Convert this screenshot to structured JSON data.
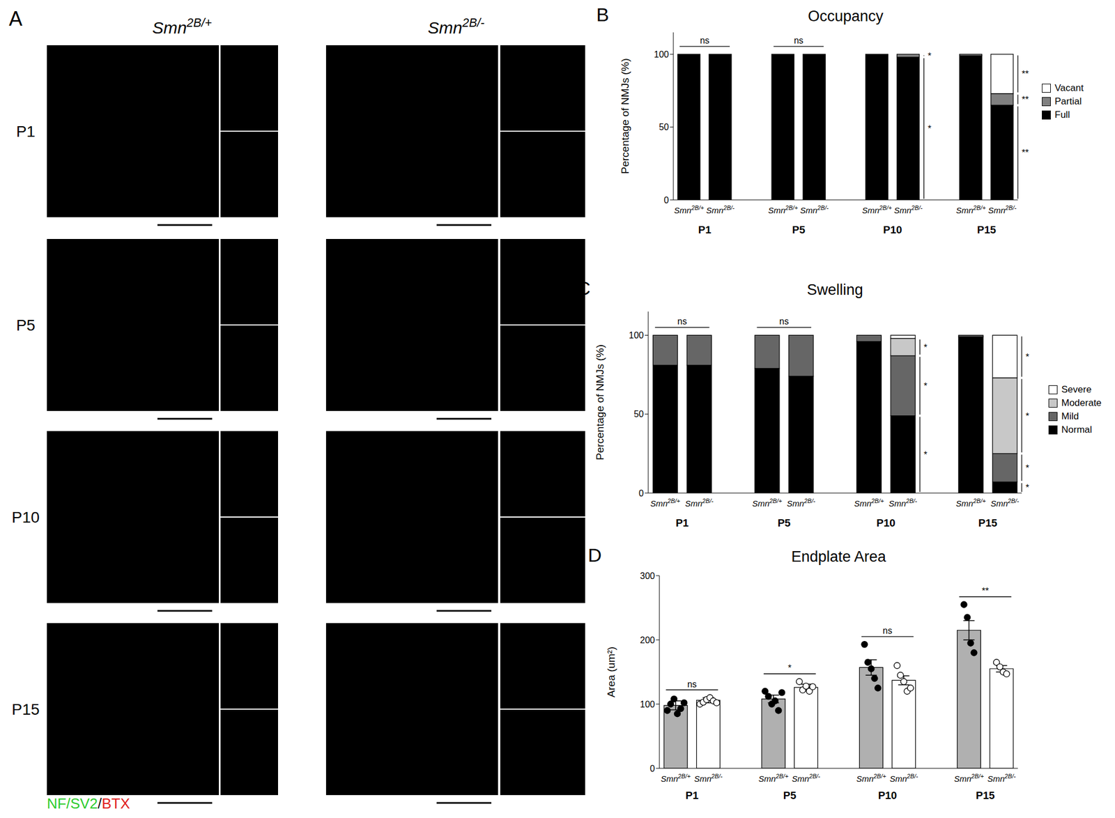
{
  "panel_a": {
    "label": "A",
    "columns": [
      "Smn2B/+",
      "Smn2B/-"
    ],
    "rows": [
      "P1",
      "P5",
      "P10",
      "P15"
    ],
    "stain": [
      {
        "text": "NF/SV2",
        "color": "#2ecc2e"
      },
      {
        "text": "/",
        "color": "#111111"
      },
      {
        "text": "BTX",
        "color": "#e02020"
      }
    ]
  },
  "chart_data": [
    {
      "panel": "B",
      "type": "bar",
      "stacked": true,
      "grid": false,
      "legend": "right",
      "title": "Occupancy",
      "y_label": "Percentage of NMJs (%)",
      "categories": [
        "Smn2B/+",
        "Smn2B/-",
        null,
        "Smn2B/+",
        "Smn2B/-",
        null,
        "Smn2B/+",
        "Smn2B/-",
        null,
        "Smn2B/+",
        "Smn2B/-"
      ],
      "groups": [
        {
          "label": "P1",
          "members": [
            0,
            1
          ]
        },
        {
          "label": "P5",
          "members": [
            3,
            4
          ]
        },
        {
          "label": "P10",
          "members": [
            6,
            7
          ]
        },
        {
          "label": "P15",
          "members": [
            9,
            10
          ]
        }
      ],
      "ylim": [
        0,
        115
      ],
      "yticks": [
        0,
        50,
        100
      ],
      "series": [
        {
          "name": "Full",
          "color": "#000000",
          "values": [
            100,
            100,
            null,
            100,
            100,
            null,
            100,
            98,
            null,
            99,
            65
          ]
        },
        {
          "name": "Partial",
          "color": "#808080",
          "values": [
            0,
            0,
            null,
            0,
            0,
            null,
            0,
            2,
            null,
            1,
            8
          ]
        },
        {
          "name": "Vacant",
          "color": "#ffffff",
          "values": [
            0,
            0,
            null,
            0,
            0,
            null,
            0,
            0,
            null,
            0,
            27
          ]
        }
      ],
      "annotations": [
        {
          "between": [
            0,
            1
          ],
          "text": "ns"
        },
        {
          "between": [
            3,
            4
          ],
          "text": "ns"
        },
        {
          "at": 7,
          "series": "Partial",
          "text": "*"
        },
        {
          "at": 7,
          "series": "Full",
          "text": "*"
        },
        {
          "at": 10,
          "series": "Vacant",
          "text": "**"
        },
        {
          "at": 10,
          "series": "Partial",
          "text": "**"
        },
        {
          "at": 10,
          "series": "Full",
          "text": "**"
        }
      ]
    },
    {
      "panel": "C",
      "type": "bar",
      "stacked": true,
      "grid": false,
      "legend": "right",
      "title": "Swelling",
      "y_label": "Percentage of NMJs (%)",
      "categories": [
        "Smn2B/+",
        "Smn2B/-",
        null,
        "Smn2B/+",
        "Smn2B/-",
        null,
        "Smn2B/+",
        "Smn2B/-",
        null,
        "Smn2B/+",
        "Smn2B/-"
      ],
      "groups": [
        {
          "label": "P1",
          "members": [
            0,
            1
          ]
        },
        {
          "label": "P5",
          "members": [
            3,
            4
          ]
        },
        {
          "label": "P10",
          "members": [
            6,
            7
          ]
        },
        {
          "label": "P15",
          "members": [
            9,
            10
          ]
        }
      ],
      "ylim": [
        0,
        115
      ],
      "yticks": [
        0,
        50,
        100
      ],
      "series": [
        {
          "name": "Normal",
          "color": "#000000",
          "values": [
            81,
            81,
            null,
            79,
            74,
            null,
            96,
            49,
            null,
            99,
            7
          ]
        },
        {
          "name": "Mild",
          "color": "#666666",
          "values": [
            19,
            19,
            null,
            21,
            26,
            null,
            4,
            38,
            null,
            1,
            18
          ]
        },
        {
          "name": "Moderate",
          "color": "#c8c8c8",
          "values": [
            0,
            0,
            null,
            0,
            0,
            null,
            0,
            11,
            null,
            0,
            48
          ]
        },
        {
          "name": "Severe",
          "color": "#ffffff",
          "values": [
            0,
            0,
            null,
            0,
            0,
            null,
            0,
            2,
            null,
            0,
            27
          ]
        }
      ],
      "annotations": [
        {
          "between": [
            0,
            1
          ],
          "text": "ns"
        },
        {
          "between": [
            3,
            4
          ],
          "text": "ns"
        },
        {
          "at": 7,
          "series": "Moderate",
          "text": "*"
        },
        {
          "at": 7,
          "series": "Mild",
          "text": "*"
        },
        {
          "at": 7,
          "series": "Normal",
          "text": "*"
        },
        {
          "at": 10,
          "series": "Severe",
          "text": "*"
        },
        {
          "at": 10,
          "series": "Moderate",
          "text": "*"
        },
        {
          "at": 10,
          "series": "Mild",
          "text": "*"
        },
        {
          "at": 10,
          "series": "Normal",
          "text": "*"
        }
      ]
    },
    {
      "panel": "D",
      "type": "bar",
      "grid": false,
      "marker": "circle",
      "title": "Endplate Area",
      "y_label": "Area (um²)",
      "categories": [
        "Smn2B/+",
        "Smn2B/-",
        null,
        "Smn2B/+",
        "Smn2B/-",
        null,
        "Smn2B/+",
        "Smn2B/-",
        null,
        "Smn2B/+",
        "Smn2B/-"
      ],
      "groups": [
        {
          "label": "P1",
          "members": [
            0,
            1
          ]
        },
        {
          "label": "P5",
          "members": [
            3,
            4
          ]
        },
        {
          "label": "P10",
          "members": [
            6,
            7
          ]
        },
        {
          "label": "P15",
          "members": [
            9,
            10
          ]
        }
      ],
      "ylim": [
        0,
        300
      ],
      "yticks": [
        0,
        100,
        200,
        300
      ],
      "values": [
        98,
        106,
        null,
        108,
        126,
        null,
        157,
        137,
        null,
        215,
        155
      ],
      "errors": [
        7,
        4,
        null,
        6,
        5,
        null,
        12,
        7,
        null,
        15,
        5
      ],
      "colors": [
        "#b0b0b0",
        "#ffffff",
        null,
        "#b0b0b0",
        "#ffffff",
        null,
        "#b0b0b0",
        "#ffffff",
        null,
        "#b0b0b0",
        "#ffffff"
      ],
      "points": [
        [
          90,
          100,
          108,
          85,
          93,
          102
        ],
        [
          100,
          103,
          107,
          110,
          105,
          102
        ],
        null,
        [
          120,
          112,
          100,
          105,
          90,
          118
        ],
        [
          135,
          122,
          128,
          120,
          127
        ],
        null,
        [
          193,
          165,
          155,
          140,
          125
        ],
        [
          160,
          145,
          135,
          120,
          125
        ],
        null,
        [
          255,
          235,
          195,
          180
        ],
        [
          165,
          158,
          150,
          147
        ]
      ],
      "point_colors": [
        "#000000",
        "#ffffff",
        null,
        "#000000",
        "#ffffff",
        null,
        "#000000",
        "#ffffff",
        null,
        "#000000",
        "#ffffff"
      ],
      "annotations": [
        {
          "between": [
            0,
            1
          ],
          "text": "ns"
        },
        {
          "between": [
            3,
            4
          ],
          "text": "*"
        },
        {
          "between": [
            6,
            7
          ],
          "text": "ns"
        },
        {
          "between": [
            9,
            10
          ],
          "text": "**"
        }
      ]
    }
  ]
}
